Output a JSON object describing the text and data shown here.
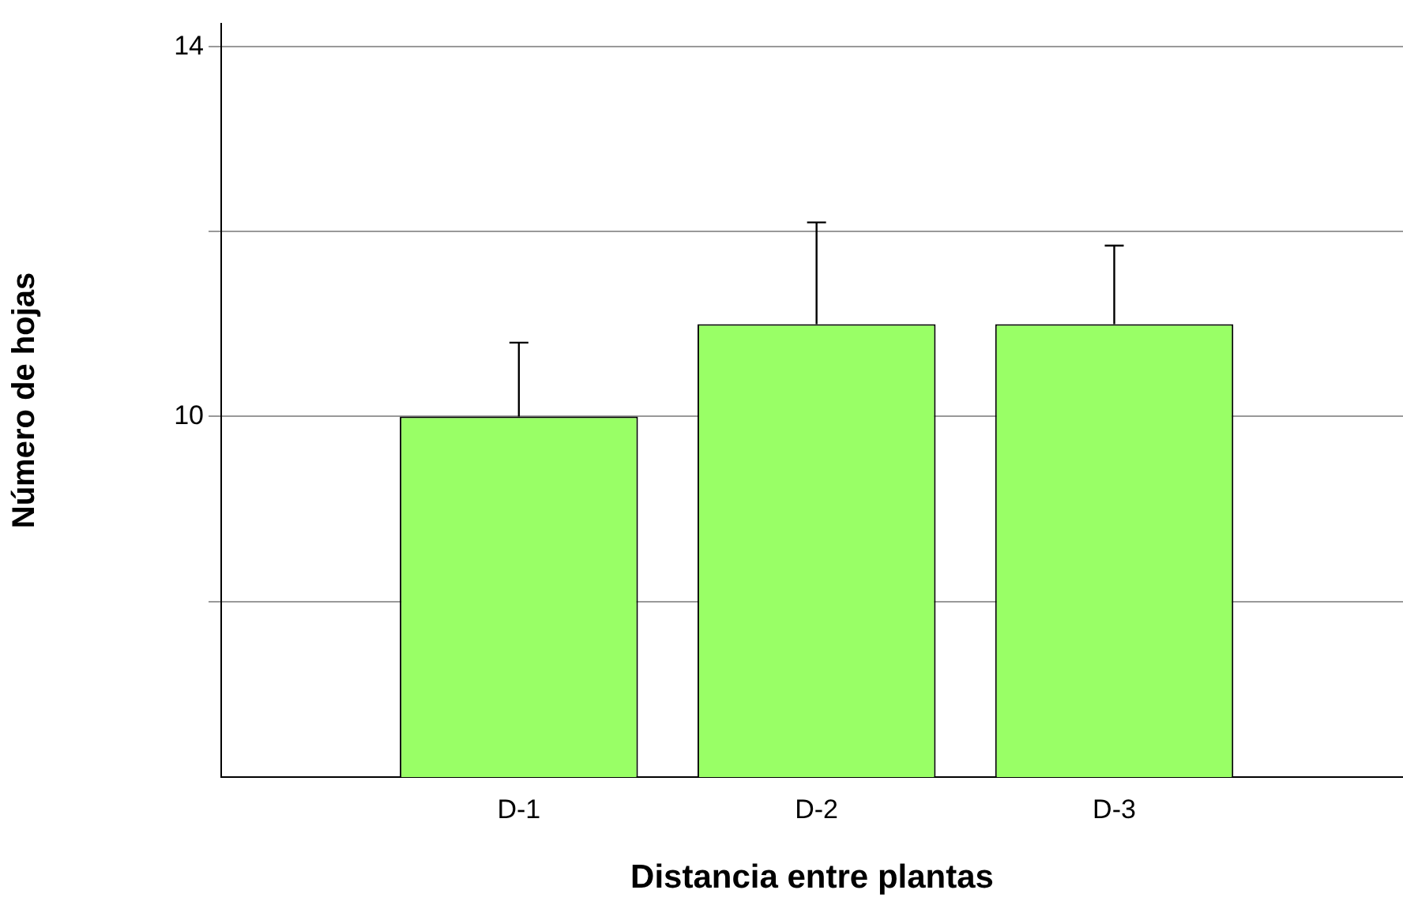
{
  "chart_data": {
    "type": "bar",
    "xlabel": "Distancia entre plantas",
    "ylabel": "Número de hojas",
    "categories": [
      "D-1",
      "D-2",
      "D-3"
    ],
    "values": [
      10,
      11,
      11
    ],
    "color": "#99ff66",
    "errors": [
      [
        10,
        10.8
      ],
      [
        11,
        12.1
      ],
      [
        11,
        11.85
      ]
    ],
    "ylim": [
      6.1,
      14.25
    ],
    "yticks": [
      {
        "value": 8,
        "label": null
      },
      {
        "value": 10,
        "label": "10"
      },
      {
        "value": 12,
        "label": null
      },
      {
        "value": 14,
        "label": "14"
      }
    ],
    "grid": "y",
    "legend": false
  }
}
